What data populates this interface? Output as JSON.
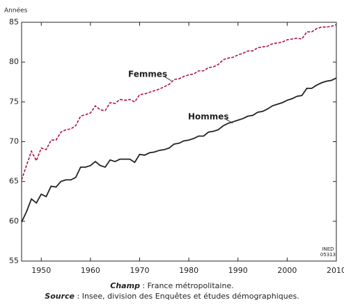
{
  "chart_data": {
    "type": "line",
    "y_label": "Années",
    "x": [
      1946,
      1947,
      1948,
      1949,
      1950,
      1951,
      1952,
      1953,
      1954,
      1955,
      1956,
      1957,
      1958,
      1959,
      1960,
      1961,
      1962,
      1963,
      1964,
      1965,
      1966,
      1967,
      1968,
      1969,
      1970,
      1971,
      1972,
      1973,
      1974,
      1975,
      1976,
      1977,
      1978,
      1979,
      1980,
      1981,
      1982,
      1983,
      1984,
      1985,
      1986,
      1987,
      1988,
      1989,
      1990,
      1991,
      1992,
      1993,
      1994,
      1995,
      1996,
      1997,
      1998,
      1999,
      2000,
      2001,
      2002,
      2003,
      2004,
      2005,
      2006,
      2007,
      2008,
      2009,
      2010
    ],
    "series": [
      {
        "name": "Femmes",
        "color": "#b0123c",
        "dash": true,
        "values": [
          65.2,
          67.0,
          68.8,
          67.6,
          69.2,
          69.0,
          70.2,
          70.2,
          71.2,
          71.5,
          71.6,
          72.0,
          73.2,
          73.4,
          73.6,
          74.5,
          74.0,
          73.9,
          74.9,
          74.8,
          75.3,
          75.2,
          75.3,
          75.0,
          75.9,
          76.0,
          76.2,
          76.4,
          76.6,
          76.9,
          77.2,
          77.8,
          77.9,
          78.2,
          78.4,
          78.5,
          78.9,
          78.9,
          79.3,
          79.4,
          79.7,
          80.3,
          80.5,
          80.6,
          80.9,
          81.1,
          81.4,
          81.4,
          81.8,
          81.9,
          82.0,
          82.3,
          82.4,
          82.5,
          82.8,
          82.9,
          83.0,
          82.9,
          83.8,
          83.8,
          84.2,
          84.4,
          84.4,
          84.5,
          84.7
        ]
      },
      {
        "name": "Hommes",
        "color": "#222222",
        "dash": false,
        "values": [
          59.9,
          61.2,
          62.8,
          62.3,
          63.4,
          63.1,
          64.4,
          64.3,
          65.0,
          65.2,
          65.2,
          65.5,
          66.8,
          66.8,
          67.0,
          67.5,
          67.0,
          66.8,
          67.7,
          67.5,
          67.8,
          67.8,
          67.8,
          67.4,
          68.4,
          68.3,
          68.6,
          68.7,
          68.9,
          69.0,
          69.2,
          69.7,
          69.8,
          70.1,
          70.2,
          70.4,
          70.7,
          70.7,
          71.2,
          71.3,
          71.5,
          72.0,
          72.3,
          72.5,
          72.7,
          72.9,
          73.2,
          73.3,
          73.7,
          73.8,
          74.1,
          74.5,
          74.7,
          74.9,
          75.2,
          75.4,
          75.7,
          75.8,
          76.7,
          76.7,
          77.1,
          77.4,
          77.6,
          77.7,
          78.0
        ]
      }
    ],
    "xlim": [
      1946,
      2010
    ],
    "xticks": [
      1950,
      1960,
      1970,
      1980,
      1990,
      2000,
      2010
    ],
    "ylim": [
      55,
      85
    ],
    "yticks": [
      55,
      60,
      65,
      70,
      75,
      80,
      85
    ],
    "stamp": [
      "INED",
      "05313"
    ],
    "caption": [
      {
        "label": "Champ",
        "text": " : France métropolitaine."
      },
      {
        "label": "Source",
        "text": " : Insee, division des Enquêtes et études démographiques."
      }
    ]
  }
}
